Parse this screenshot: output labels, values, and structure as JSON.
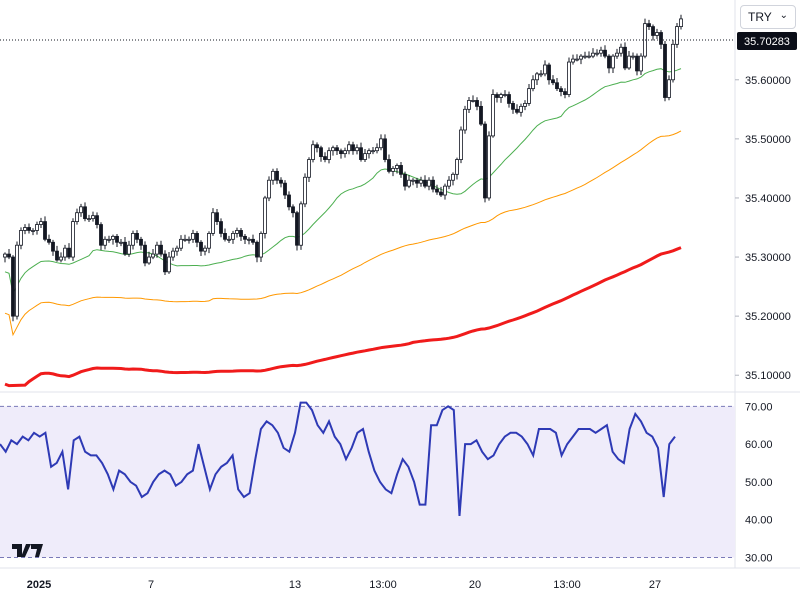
{
  "currency_select": {
    "value": "TRY",
    "chevron": "⌄"
  },
  "logo_text": "TV",
  "last_price_label": "35.70283",
  "chart_data": [
    {
      "type": "candlestick",
      "y_ticks": [
        "35.10000",
        "35.20000",
        "35.30000",
        "35.40000",
        "35.50000",
        "35.60000"
      ],
      "y_tick_values": [
        35.1,
        35.2,
        35.3,
        35.4,
        35.5,
        35.6
      ],
      "ylim": [
        35.075,
        35.735
      ],
      "x_ticks": [
        {
          "label": "2025",
          "bold": true,
          "idx": 11
        },
        {
          "label": "7",
          "bold": false,
          "idx": 39
        },
        {
          "label": "13",
          "bold": false,
          "idx": 75
        },
        {
          "label": "13:00",
          "bold": false,
          "idx": 97
        },
        {
          "label": "20",
          "bold": false,
          "idx": 120
        },
        {
          "label": "13:00",
          "bold": false,
          "idx": 143
        },
        {
          "label": "27",
          "bold": false,
          "idx": 165
        }
      ],
      "last_price": 35.70283,
      "close": [
        35.305,
        35.3,
        35.2,
        35.32,
        35.345,
        35.35,
        35.345,
        35.345,
        35.355,
        35.36,
        35.33,
        35.325,
        35.31,
        35.295,
        35.3,
        35.315,
        35.3,
        35.36,
        35.375,
        35.385,
        35.365,
        35.365,
        35.37,
        35.355,
        35.32,
        35.33,
        35.33,
        35.335,
        35.325,
        35.325,
        35.305,
        35.32,
        35.34,
        35.33,
        35.32,
        35.29,
        35.3,
        35.305,
        35.32,
        35.305,
        35.275,
        35.3,
        35.31,
        35.315,
        35.33,
        35.33,
        35.33,
        35.34,
        35.325,
        35.31,
        35.315,
        35.34,
        35.375,
        35.36,
        35.34,
        35.33,
        35.33,
        35.34,
        35.345,
        35.335,
        35.33,
        35.33,
        35.325,
        35.3,
        35.34,
        35.4,
        35.43,
        35.445,
        35.43,
        35.425,
        35.405,
        35.385,
        35.375,
        35.32,
        35.39,
        35.435,
        35.465,
        35.49,
        35.485,
        35.47,
        35.465,
        35.48,
        35.485,
        35.48,
        35.475,
        35.48,
        35.49,
        35.48,
        35.485,
        35.465,
        35.475,
        35.48,
        35.48,
        35.485,
        35.5,
        35.465,
        35.445,
        35.45,
        35.455,
        35.44,
        35.42,
        35.43,
        35.43,
        35.425,
        35.43,
        35.42,
        35.43,
        35.415,
        35.41,
        35.405,
        35.42,
        35.43,
        35.44,
        35.465,
        35.515,
        35.55,
        35.565,
        35.565,
        35.555,
        35.525,
        35.4,
        35.505,
        35.575,
        35.57,
        35.575,
        35.575,
        35.56,
        35.55,
        35.545,
        35.555,
        35.56,
        35.585,
        35.6,
        35.61,
        35.61,
        35.625,
        35.6,
        35.595,
        35.585,
        35.58,
        35.575,
        35.63,
        35.635,
        35.635,
        35.64,
        35.64,
        35.64,
        35.645,
        35.645,
        35.65,
        35.64,
        35.62,
        35.64,
        35.645,
        35.655,
        35.62,
        35.64,
        35.64,
        35.615,
        35.64,
        35.695,
        35.69,
        35.675,
        35.68,
        35.66,
        35.57,
        35.6,
        35.66,
        35.69,
        35.703
      ]
    },
    {
      "type": "line",
      "y_ticks": [
        "30.00",
        "40.00",
        "50.00",
        "60.00",
        "70.00"
      ],
      "y_tick_values": [
        30,
        40,
        50,
        60,
        70
      ],
      "ylim": [
        30,
        70
      ],
      "band": [
        30,
        70
      ],
      "series": [
        {
          "values": [
            60,
            58,
            61,
            60,
            62,
            61,
            63,
            62,
            63,
            54,
            55,
            58,
            48,
            61,
            62,
            58,
            57,
            57,
            55,
            52,
            48,
            53,
            52,
            50,
            49,
            46,
            47,
            50,
            52,
            53,
            52,
            49,
            50,
            52,
            53,
            60,
            54,
            48,
            52,
            54,
            55,
            57,
            48,
            46,
            47,
            56,
            64,
            66,
            65,
            63,
            59,
            58,
            63,
            71,
            71,
            69,
            65,
            63,
            66,
            62,
            60,
            56,
            59,
            63,
            64,
            58,
            53,
            50,
            48,
            47,
            52,
            56,
            54,
            50,
            44,
            44,
            65,
            65,
            69,
            70,
            69,
            41,
            60,
            60,
            61,
            58,
            56,
            57,
            60,
            62,
            63,
            63,
            62,
            60,
            57,
            64,
            64,
            64,
            63,
            57,
            60,
            62,
            64,
            64,
            64,
            63,
            64,
            65,
            58,
            56,
            55,
            64,
            68,
            66,
            63,
            62,
            59,
            46,
            60,
            62
          ]
        }
      ]
    }
  ],
  "colors": {
    "candle": "#131722",
    "sma_short": "#4caf50",
    "sma_mid": "#ff9800",
    "sma_long": "#f01b1b",
    "rsi_line": "#2e3ab5",
    "rsi_band": "#efecfa",
    "band_line": "#7a7ab8",
    "price_tag": "#0b0e18"
  }
}
